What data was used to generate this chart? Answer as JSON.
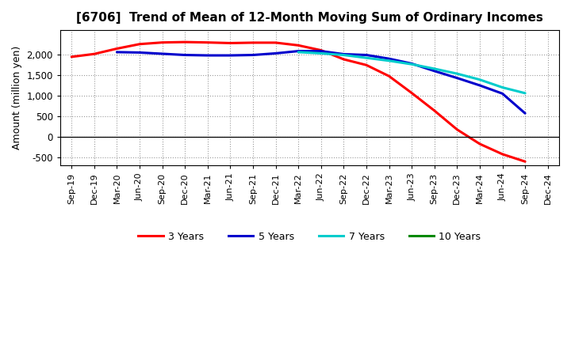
{
  "title": "[6706]  Trend of Mean of 12-Month Moving Sum of Ordinary Incomes",
  "ylabel": "Amount (million yen)",
  "background_color": "#ffffff",
  "grid_color": "#888888",
  "ylim": [
    -700,
    2600
  ],
  "yticks": [
    -500,
    0,
    500,
    1000,
    1500,
    2000
  ],
  "x_labels": [
    "Sep-19",
    "Dec-19",
    "Mar-20",
    "Jun-20",
    "Sep-20",
    "Dec-20",
    "Mar-21",
    "Jun-21",
    "Sep-21",
    "Dec-21",
    "Mar-22",
    "Jun-22",
    "Sep-22",
    "Dec-22",
    "Mar-23",
    "Jun-23",
    "Sep-23",
    "Dec-23",
    "Mar-24",
    "Jun-24",
    "Sep-24",
    "Dec-24"
  ],
  "series": {
    "3 Years": {
      "color": "#ff0000",
      "values": [
        1950,
        2020,
        2150,
        2260,
        2300,
        2310,
        2300,
        2285,
        2295,
        2295,
        2230,
        2110,
        1890,
        1750,
        1480,
        1070,
        640,
        180,
        -170,
        -420,
        -600,
        null
      ]
    },
    "5 Years": {
      "color": "#0000cc",
      "values": [
        null,
        null,
        2065,
        2055,
        2025,
        1995,
        1985,
        1985,
        1995,
        2035,
        2090,
        2090,
        2015,
        1995,
        1905,
        1785,
        1605,
        1435,
        1255,
        1055,
        575,
        null
      ]
    },
    "7 Years": {
      "color": "#00cccc",
      "values": [
        null,
        null,
        null,
        null,
        null,
        null,
        null,
        null,
        null,
        null,
        2065,
        2035,
        1995,
        1925,
        1855,
        1770,
        1660,
        1540,
        1395,
        1205,
        1065,
        null
      ]
    },
    "10 Years": {
      "color": "#008800",
      "values": [
        null,
        null,
        null,
        null,
        null,
        null,
        null,
        null,
        null,
        null,
        null,
        null,
        null,
        null,
        null,
        null,
        null,
        null,
        null,
        null,
        null,
        null
      ]
    }
  },
  "legend_order": [
    "3 Years",
    "5 Years",
    "7 Years",
    "10 Years"
  ]
}
